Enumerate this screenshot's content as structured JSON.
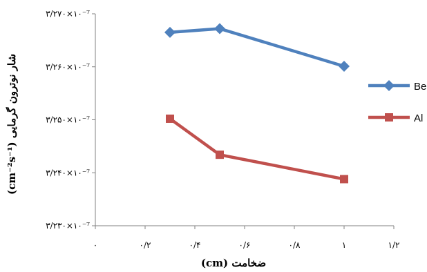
{
  "chart_data": {
    "type": "line",
    "xlabel": "ضخامت (cm)",
    "ylabel": "شار نوترون گرمایی (cm⁻²s⁻¹)",
    "xlim": [
      0,
      1.2
    ],
    "ylim": [
      3.23e-07,
      3.27e-07
    ],
    "x_ticks": [
      0,
      0.2,
      0.4,
      0.6,
      0.8,
      1,
      1.2
    ],
    "x_tick_labels": [
      "۰",
      "۰/۲",
      "۰/۴",
      "۰/۶",
      "۰/۸",
      "۱",
      "۱/۲"
    ],
    "y_ticks": [
      3.23e-07,
      3.24e-07,
      3.25e-07,
      3.26e-07,
      3.27e-07
    ],
    "y_tick_labels": [
      "۳/۲۳۰×۱۰⁻⁷",
      "۳/۲۴۰×۱۰⁻⁷",
      "۳/۲۵۰×۱۰⁻⁷",
      "۳/۲۶۰×۱۰⁻⁷",
      "۳/۲۷۰×۱۰⁻⁷"
    ],
    "grid": false,
    "legend_position": "right",
    "series": [
      {
        "name": "Be",
        "color": "#4F81BD",
        "marker": "diamond",
        "x": [
          0.3,
          0.5,
          1.0
        ],
        "y": [
          3.2665e-07,
          3.2672e-07,
          3.2601e-07
        ]
      },
      {
        "name": "Al",
        "color": "#C0504D",
        "marker": "square",
        "x": [
          0.3,
          0.5,
          1.0
        ],
        "y": [
          3.2502e-07,
          3.2434e-07,
          3.2388e-07
        ]
      }
    ]
  }
}
